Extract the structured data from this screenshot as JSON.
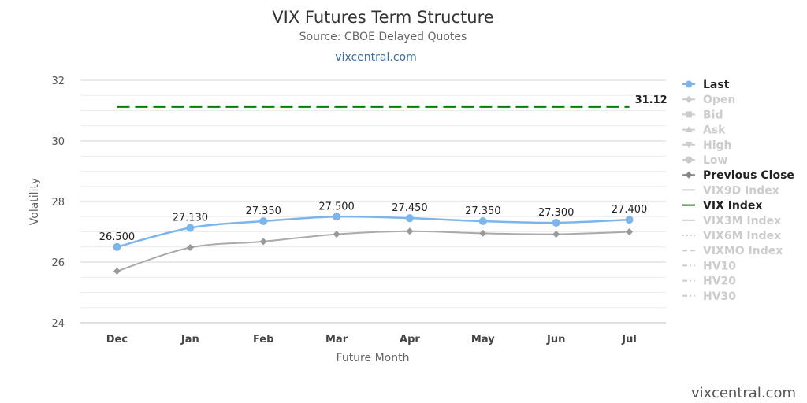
{
  "header": {
    "title": "VIX Futures Term Structure",
    "subtitle": "Source: CBOE Delayed Quotes",
    "link": "vixcentral.com"
  },
  "credit": "vixcentral.com",
  "chart_data": {
    "type": "line",
    "title": "VIX Futures Term Structure",
    "subtitle": "Source: CBOE Delayed Quotes",
    "xlabel": "Future Month",
    "ylabel": "Volatility",
    "ylim": [
      24,
      32
    ],
    "yticks": [
      "24",
      "26",
      "28",
      "30",
      "32"
    ],
    "categories": [
      "Dec",
      "Jan",
      "Feb",
      "Mar",
      "Apr",
      "May",
      "Jun",
      "Jul"
    ],
    "grid": true,
    "legend_position": "right",
    "series": [
      {
        "name": "Last",
        "color": "#7cb5ec",
        "values": [
          26.5,
          27.13,
          27.35,
          27.5,
          27.45,
          27.35,
          27.3,
          27.4
        ],
        "labels": [
          "26.500",
          "27.130",
          "27.350",
          "27.500",
          "27.450",
          "27.350",
          "27.300",
          "27.400"
        ]
      },
      {
        "name": "Previous Close",
        "color": "#aaaaaa",
        "values": [
          25.7,
          26.48,
          26.68,
          26.92,
          27.02,
          26.95,
          26.92,
          27.0
        ]
      },
      {
        "name": "VIX Index",
        "color": "#008000",
        "values": [
          31.12,
          31.12,
          31.12,
          31.12,
          31.12,
          31.12,
          31.12,
          31.12
        ],
        "end_label": "31.12"
      }
    ],
    "legend": [
      {
        "name": "Last",
        "active": true,
        "symbol": "circle",
        "color": "#7cb5ec",
        "dash": "solid"
      },
      {
        "name": "Open",
        "active": false,
        "symbol": "diamond",
        "color": "#cccccc",
        "dash": "solid"
      },
      {
        "name": "Bid",
        "active": false,
        "symbol": "square",
        "color": "#cccccc",
        "dash": "solid"
      },
      {
        "name": "Ask",
        "active": false,
        "symbol": "triangle",
        "color": "#cccccc",
        "dash": "solid"
      },
      {
        "name": "High",
        "active": false,
        "symbol": "triangle-down",
        "color": "#cccccc",
        "dash": "solid"
      },
      {
        "name": "Low",
        "active": false,
        "symbol": "circle",
        "color": "#cccccc",
        "dash": "solid"
      },
      {
        "name": "Previous Close",
        "active": true,
        "symbol": "diamond",
        "color": "#888888",
        "dash": "solid"
      },
      {
        "name": "VIX9D Index",
        "active": false,
        "symbol": "none",
        "color": "#cccccc",
        "dash": "solid"
      },
      {
        "name": "VIX Index",
        "active": true,
        "symbol": "none",
        "color": "#008000",
        "dash": "solid"
      },
      {
        "name": "VIX3M Index",
        "active": false,
        "symbol": "none",
        "color": "#cccccc",
        "dash": "solid"
      },
      {
        "name": "VIX6M Index",
        "active": false,
        "symbol": "none",
        "color": "#cccccc",
        "dash": "dot"
      },
      {
        "name": "VIXMO Index",
        "active": false,
        "symbol": "none",
        "color": "#cccccc",
        "dash": "dash"
      },
      {
        "name": "HV10",
        "active": false,
        "symbol": "none",
        "color": "#cccccc",
        "dash": "dashdot"
      },
      {
        "name": "HV20",
        "active": false,
        "symbol": "none",
        "color": "#cccccc",
        "dash": "dashdot"
      },
      {
        "name": "HV30",
        "active": false,
        "symbol": "none",
        "color": "#cccccc",
        "dash": "dashdot"
      }
    ]
  }
}
